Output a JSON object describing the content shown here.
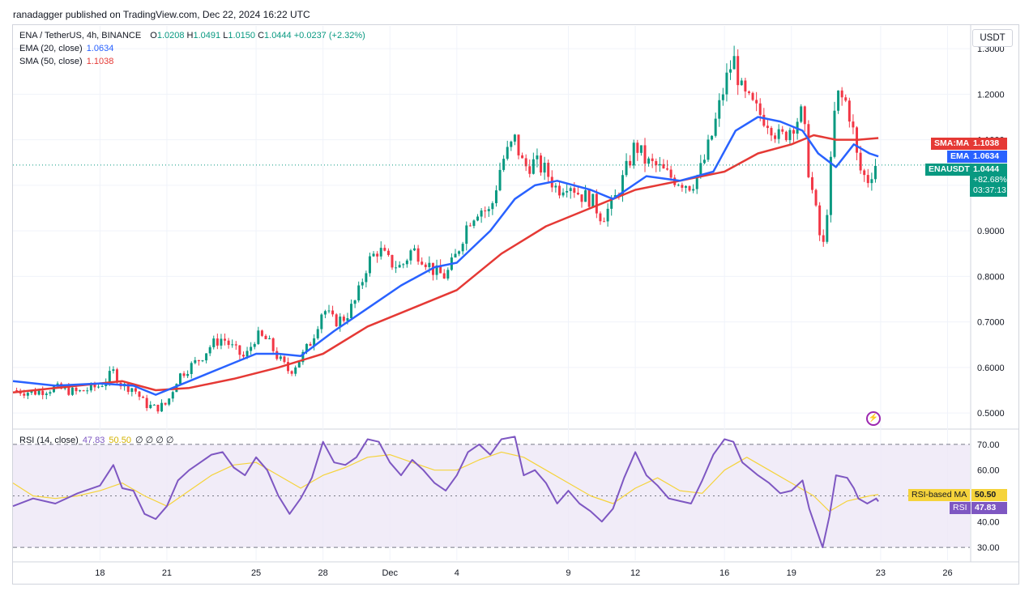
{
  "header": {
    "published": "ranadagger published on TradingView.com, Dec 22, 2024 16:22 UTC"
  },
  "main_legend": {
    "symbol": "ENA / TetherUS, 4h, BINANCE",
    "o_label": "O",
    "o": "1.0208",
    "h_label": "H",
    "h": "1.0491",
    "l_label": "L",
    "l": "1.0150",
    "c_label": "C",
    "c": "1.0444",
    "change": "+0.0237 (+2.32%)",
    "ema_label": "EMA (20, close)",
    "ema_value": "1.0634",
    "sma_label": "SMA (50, close)",
    "sma_value": "1.1038"
  },
  "rsi_legend": {
    "label": "RSI (14, close)",
    "rsi": "47.83",
    "ma": "50.50",
    "extras": "∅ ∅ ∅ ∅"
  },
  "currency": "USDT",
  "price_tags": {
    "sma_label": "SMA:MA",
    "sma_value": "1.1038",
    "ema_label": "EMA",
    "ema_value": "1.0634",
    "sym_label": "ENAUSDT",
    "sym_value": "1.0444",
    "sym_change": "+82.68%",
    "sym_timer": "03:37:13"
  },
  "rsi_tags": {
    "ma_label": "RSI-based MA",
    "ma_value": "50.50",
    "rsi_label": "RSI",
    "rsi_value": "47.83"
  },
  "colors": {
    "up": "#089981",
    "down": "#f23645",
    "ema": "#2962ff",
    "sma": "#e53935",
    "rsi": "#7e57c2",
    "rsi_ma": "#f5d33b",
    "rsi_band": "#ede7f6"
  },
  "chart_data": [
    {
      "type": "candlestick",
      "title": "ENA / TetherUS, 4h, BINANCE",
      "y_ticks": [
        "1.3000",
        "1.2000",
        "1.1000",
        "1.0000",
        "0.9000",
        "0.8000",
        "0.7000",
        "0.6000",
        "0.5000"
      ],
      "y_tick_values": [
        1.3,
        1.2,
        1.1,
        1.0,
        0.9,
        0.8,
        0.7,
        0.6,
        0.5
      ],
      "ylim": [
        0.47,
        1.35
      ],
      "x_ticks": [
        "18",
        "21",
        "25",
        "28",
        "Dec",
        "4",
        "9",
        "12",
        "16",
        "19",
        "23",
        "26"
      ],
      "x_tick_days": [
        18,
        21,
        25,
        28,
        31,
        34,
        39,
        42,
        46,
        49,
        53,
        56
      ],
      "x_range_days": [
        14.1,
        57.0
      ],
      "bars_per_day": 6,
      "last_close": 1.0444,
      "last_price_value": 1.0444,
      "sma_value": 1.1038,
      "ema_value": 1.0634,
      "close_path": [
        [
          14.1,
          0.55
        ],
        [
          15.0,
          0.545
        ],
        [
          16.0,
          0.555
        ],
        [
          17.0,
          0.545
        ],
        [
          18.0,
          0.56
        ],
        [
          18.6,
          0.59
        ],
        [
          19.0,
          0.56
        ],
        [
          19.5,
          0.555
        ],
        [
          20.0,
          0.52
        ],
        [
          20.5,
          0.51
        ],
        [
          21.0,
          0.52
        ],
        [
          21.5,
          0.58
        ],
        [
          22.0,
          0.6
        ],
        [
          22.5,
          0.62
        ],
        [
          23.0,
          0.65
        ],
        [
          23.5,
          0.665
        ],
        [
          24.0,
          0.64
        ],
        [
          24.5,
          0.62
        ],
        [
          25.0,
          0.67
        ],
        [
          25.5,
          0.66
        ],
        [
          26.0,
          0.62
        ],
        [
          26.5,
          0.59
        ],
        [
          27.0,
          0.62
        ],
        [
          27.5,
          0.66
        ],
        [
          28.0,
          0.73
        ],
        [
          28.5,
          0.7
        ],
        [
          29.0,
          0.71
        ],
        [
          29.5,
          0.75
        ],
        [
          30.0,
          0.83
        ],
        [
          30.5,
          0.86
        ],
        [
          31.0,
          0.83
        ],
        [
          31.5,
          0.82
        ],
        [
          32.0,
          0.86
        ],
        [
          32.5,
          0.84
        ],
        [
          33.0,
          0.81
        ],
        [
          33.5,
          0.8
        ],
        [
          34.0,
          0.85
        ],
        [
          34.5,
          0.92
        ],
        [
          35.0,
          0.95
        ],
        [
          35.5,
          0.94
        ],
        [
          36.0,
          1.05
        ],
        [
          36.6,
          1.1
        ],
        [
          37.0,
          1.04
        ],
        [
          37.5,
          1.05
        ],
        [
          38.0,
          1.03
        ],
        [
          38.5,
          0.99
        ],
        [
          39.0,
          1.01
        ],
        [
          39.5,
          0.98
        ],
        [
          40.0,
          0.97
        ],
        [
          40.5,
          0.93
        ],
        [
          41.0,
          0.96
        ],
        [
          41.5,
          1.02
        ],
        [
          42.0,
          1.09
        ],
        [
          42.5,
          1.05
        ],
        [
          43.0,
          1.04
        ],
        [
          43.5,
          1.02
        ],
        [
          44.0,
          1.01
        ],
        [
          44.5,
          1.0
        ],
        [
          45.0,
          1.04
        ],
        [
          45.5,
          1.12
        ],
        [
          46.0,
          1.22
        ],
        [
          46.4,
          1.28
        ],
        [
          46.8,
          1.2
        ],
        [
          47.5,
          1.16
        ],
        [
          48.0,
          1.14
        ],
        [
          48.5,
          1.1
        ],
        [
          49.0,
          1.13
        ],
        [
          49.5,
          1.16
        ],
        [
          49.8,
          1.02
        ],
        [
          50.0,
          0.97
        ],
        [
          50.4,
          0.85
        ],
        [
          50.7,
          1.0
        ],
        [
          51.0,
          1.2
        ],
        [
          51.5,
          1.18
        ],
        [
          51.8,
          1.11
        ],
        [
          52.0,
          1.04
        ],
        [
          52.4,
          1.01
        ],
        [
          52.8,
          1.05
        ],
        [
          52.9,
          1.0444
        ]
      ],
      "series": [
        {
          "name": "EMA (20, close)",
          "points": [
            [
              14.1,
              0.57
            ],
            [
              16.0,
              0.56
            ],
            [
              18.0,
              0.565
            ],
            [
              19.5,
              0.56
            ],
            [
              20.5,
              0.54
            ],
            [
              22.0,
              0.57
            ],
            [
              23.5,
              0.6
            ],
            [
              25.0,
              0.63
            ],
            [
              26.0,
              0.63
            ],
            [
              27.0,
              0.625
            ],
            [
              28.5,
              0.68
            ],
            [
              30.0,
              0.73
            ],
            [
              31.5,
              0.78
            ],
            [
              33.0,
              0.82
            ],
            [
              34.0,
              0.83
            ],
            [
              35.5,
              0.9
            ],
            [
              36.6,
              0.97
            ],
            [
              37.5,
              1.0
            ],
            [
              38.5,
              1.01
            ],
            [
              40.0,
              0.99
            ],
            [
              41.0,
              0.97
            ],
            [
              42.5,
              1.02
            ],
            [
              44.0,
              1.01
            ],
            [
              45.5,
              1.03
            ],
            [
              46.5,
              1.12
            ],
            [
              47.5,
              1.15
            ],
            [
              48.5,
              1.14
            ],
            [
              49.5,
              1.12
            ],
            [
              50.2,
              1.07
            ],
            [
              51.0,
              1.04
            ],
            [
              51.8,
              1.09
            ],
            [
              52.5,
              1.07
            ],
            [
              52.9,
              1.0634
            ]
          ]
        },
        {
          "name": "SMA (50, close)",
          "points": [
            [
              14.1,
              0.545
            ],
            [
              17.0,
              0.56
            ],
            [
              19.0,
              0.57
            ],
            [
              20.5,
              0.55
            ],
            [
              22.0,
              0.555
            ],
            [
              24.0,
              0.575
            ],
            [
              26.0,
              0.6
            ],
            [
              28.0,
              0.63
            ],
            [
              30.0,
              0.69
            ],
            [
              32.0,
              0.73
            ],
            [
              34.0,
              0.77
            ],
            [
              36.0,
              0.85
            ],
            [
              38.0,
              0.91
            ],
            [
              40.0,
              0.95
            ],
            [
              42.0,
              0.99
            ],
            [
              44.0,
              1.01
            ],
            [
              46.0,
              1.03
            ],
            [
              47.5,
              1.07
            ],
            [
              49.0,
              1.09
            ],
            [
              50.0,
              1.11
            ],
            [
              51.0,
              1.1
            ],
            [
              52.0,
              1.1
            ],
            [
              52.9,
              1.1038
            ]
          ]
        }
      ]
    },
    {
      "type": "line",
      "title": "RSI (14, close)",
      "y_ticks": [
        "70.00",
        "60.00",
        "50.00",
        "40.00",
        "30.00"
      ],
      "y_tick_values": [
        70,
        60,
        50,
        40,
        30
      ],
      "ylim": [
        25,
        75
      ],
      "band": [
        30,
        70
      ],
      "x_range_days": [
        14.1,
        57.0
      ],
      "series": [
        {
          "name": "RSI",
          "points": [
            [
              14.1,
              46
            ],
            [
              15.0,
              49
            ],
            [
              16.0,
              47
            ],
            [
              17.0,
              51
            ],
            [
              18.0,
              54
            ],
            [
              18.6,
              62
            ],
            [
              19.0,
              53
            ],
            [
              19.5,
              52
            ],
            [
              20.0,
              43
            ],
            [
              20.5,
              41
            ],
            [
              21.0,
              46
            ],
            [
              21.5,
              56
            ],
            [
              22.0,
              60
            ],
            [
              22.5,
              63
            ],
            [
              23.0,
              66
            ],
            [
              23.5,
              67
            ],
            [
              24.0,
              61
            ],
            [
              24.5,
              58
            ],
            [
              25.0,
              65
            ],
            [
              25.5,
              60
            ],
            [
              26.0,
              50
            ],
            [
              26.5,
              43
            ],
            [
              27.0,
              49
            ],
            [
              27.5,
              57
            ],
            [
              28.0,
              71
            ],
            [
              28.5,
              63
            ],
            [
              29.0,
              62
            ],
            [
              29.5,
              65
            ],
            [
              30.0,
              72
            ],
            [
              30.5,
              71
            ],
            [
              31.0,
              63
            ],
            [
              31.5,
              58
            ],
            [
              32.0,
              64
            ],
            [
              32.5,
              60
            ],
            [
              33.0,
              55
            ],
            [
              33.5,
              52
            ],
            [
              34.0,
              58
            ],
            [
              34.5,
              67
            ],
            [
              35.0,
              70
            ],
            [
              35.5,
              66
            ],
            [
              36.0,
              72
            ],
            [
              36.6,
              73
            ],
            [
              37.0,
              58
            ],
            [
              37.5,
              60
            ],
            [
              38.0,
              55
            ],
            [
              38.5,
              47
            ],
            [
              39.0,
              52
            ],
            [
              39.5,
              47
            ],
            [
              40.0,
              44
            ],
            [
              40.5,
              40
            ],
            [
              41.0,
              45
            ],
            [
              41.5,
              57
            ],
            [
              42.0,
              67
            ],
            [
              42.5,
              58
            ],
            [
              43.0,
              54
            ],
            [
              43.5,
              49
            ],
            [
              44.0,
              48
            ],
            [
              44.5,
              47
            ],
            [
              45.0,
              56
            ],
            [
              45.5,
              66
            ],
            [
              46.0,
              72
            ],
            [
              46.4,
              71
            ],
            [
              46.8,
              63
            ],
            [
              47.5,
              58
            ],
            [
              48.0,
              55
            ],
            [
              48.5,
              51
            ],
            [
              49.0,
              52
            ],
            [
              49.5,
              56
            ],
            [
              49.8,
              45
            ],
            [
              50.0,
              40
            ],
            [
              50.4,
              30
            ],
            [
              50.7,
              42
            ],
            [
              51.0,
              58
            ],
            [
              51.5,
              57
            ],
            [
              51.8,
              53
            ],
            [
              52.0,
              49
            ],
            [
              52.4,
              47
            ],
            [
              52.8,
              49
            ],
            [
              52.9,
              47.83
            ]
          ]
        },
        {
          "name": "RSI-based MA",
          "points": [
            [
              14.1,
              55
            ],
            [
              15.0,
              50
            ],
            [
              16.0,
              49
            ],
            [
              17.0,
              50
            ],
            [
              18.0,
              52
            ],
            [
              19.0,
              55
            ],
            [
              20.0,
              50
            ],
            [
              21.0,
              46
            ],
            [
              22.0,
              52
            ],
            [
              23.0,
              58
            ],
            [
              24.0,
              62
            ],
            [
              25.0,
              63
            ],
            [
              26.0,
              58
            ],
            [
              27.0,
              53
            ],
            [
              28.0,
              58
            ],
            [
              29.0,
              61
            ],
            [
              30.0,
              65
            ],
            [
              31.0,
              66
            ],
            [
              32.0,
              63
            ],
            [
              33.0,
              60
            ],
            [
              34.0,
              60
            ],
            [
              35.0,
              64
            ],
            [
              36.0,
              67
            ],
            [
              37.0,
              65
            ],
            [
              38.0,
              60
            ],
            [
              39.0,
              55
            ],
            [
              40.0,
              50
            ],
            [
              41.0,
              47
            ],
            [
              42.0,
              53
            ],
            [
              43.0,
              57
            ],
            [
              44.0,
              52
            ],
            [
              45.0,
              51
            ],
            [
              46.0,
              60
            ],
            [
              47.0,
              65
            ],
            [
              48.0,
              60
            ],
            [
              49.0,
              55
            ],
            [
              50.0,
              50
            ],
            [
              50.7,
              44
            ],
            [
              51.5,
              48
            ],
            [
              52.5,
              50
            ],
            [
              52.9,
              50.5
            ]
          ]
        }
      ]
    }
  ]
}
